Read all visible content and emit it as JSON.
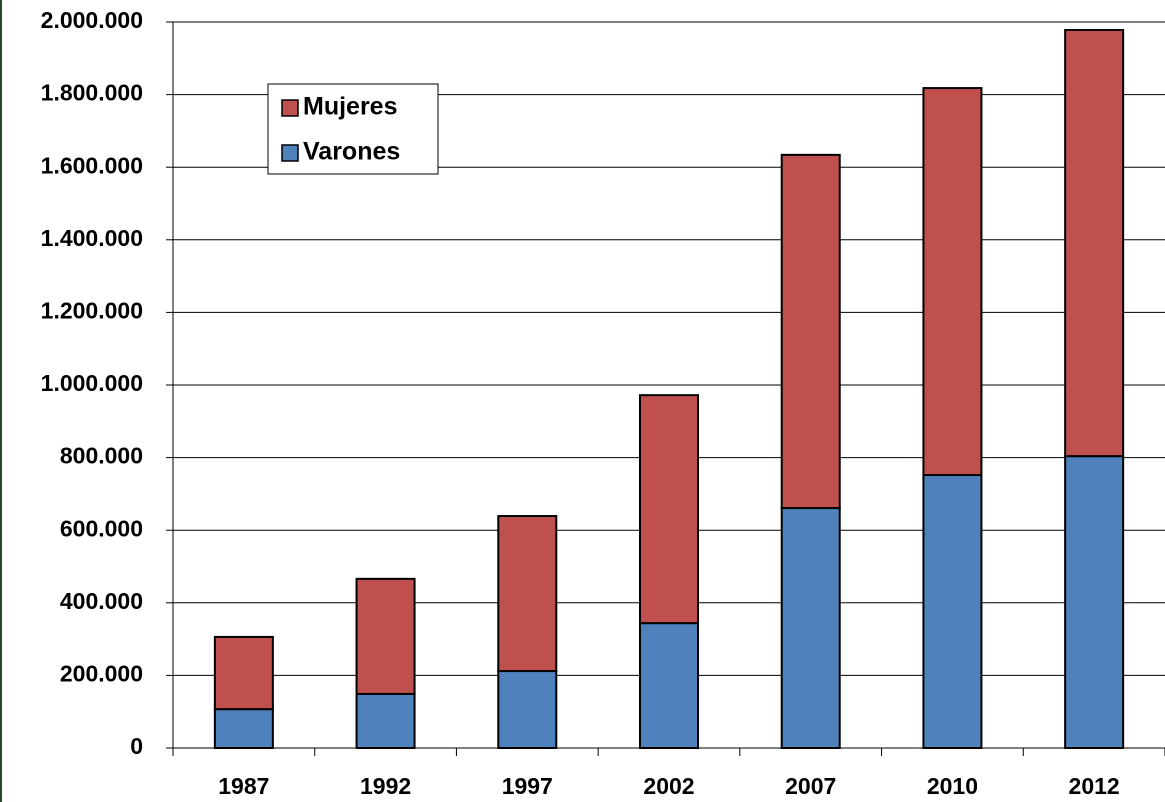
{
  "chart_data": {
    "type": "stacked_bar",
    "categories": [
      "1987",
      "1992",
      "1997",
      "2002",
      "2007",
      "2010",
      "2012"
    ],
    "series": [
      {
        "name": "Varones",
        "color": "#4f81bd",
        "values": [
          107000,
          149000,
          212000,
          344000,
          661000,
          752000,
          804000
        ]
      },
      {
        "name": "Mujeres",
        "color": "#c0504d",
        "values": [
          199000,
          317000,
          427000,
          628000,
          973000,
          1066000,
          1174000
        ]
      }
    ],
    "ylim": [
      0,
      2000000
    ],
    "yticks": [
      0,
      {
        "value": 200000,
        "label": "200.000"
      },
      {
        "value": 400000,
        "label": "400.000"
      },
      {
        "value": 600000,
        "label": "600.000"
      },
      {
        "value": 800000,
        "label": "800.000"
      },
      {
        "value": 1000000,
        "label": "1.000.000"
      },
      {
        "value": 1200000,
        "label": "1.200.000"
      },
      {
        "value": 1400000,
        "label": "1.400.000"
      },
      {
        "value": 1600000,
        "label": "1.600.000"
      },
      {
        "value": 1800000,
        "label": "1.800.000"
      },
      {
        "value": 2000000,
        "label": "2.000.000"
      }
    ],
    "grid": true,
    "legend": "upper left"
  }
}
